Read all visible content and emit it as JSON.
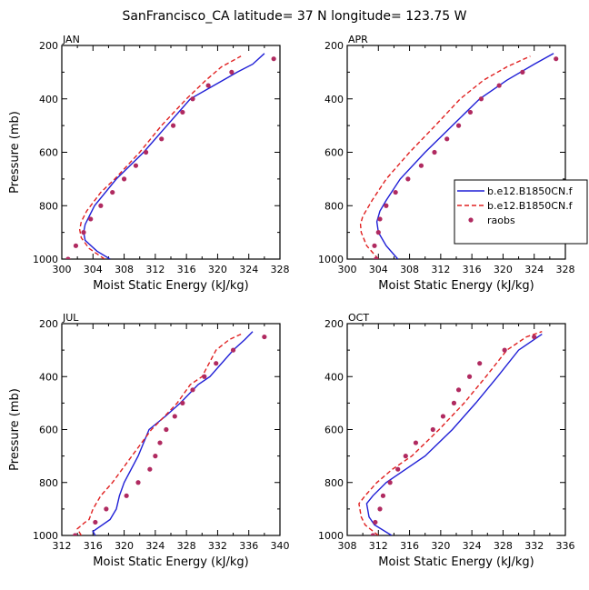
{
  "title": "SanFrancisco_CA  latitude= 37 N longitude= 123.75 W",
  "colors": {
    "model1": "#1f1fd6",
    "model2": "#e02020",
    "obs": "#b02a60",
    "axis": "#000000"
  },
  "legend": {
    "placement": "right edge of APR panel",
    "entries": [
      {
        "label": "b.e12.B1850CN.f",
        "style": "solid",
        "color": "#1f1fd6"
      },
      {
        "label": "b.e12.B1850CN.f",
        "style": "dashed",
        "color": "#e02020"
      },
      {
        "label": "raobs",
        "style": "dots",
        "color": "#b02a60"
      }
    ]
  },
  "chart_data": [
    {
      "type": "line",
      "panel": "JAN",
      "xlabel": "Moist Static Energy (kJ/kg)",
      "ylabel": "Pressure (mb)",
      "xlim": [
        300,
        328
      ],
      "xticks": [
        300,
        304,
        308,
        312,
        316,
        320,
        324,
        328
      ],
      "ylim": [
        1000,
        200
      ],
      "yticks": [
        200,
        400,
        600,
        800,
        1000
      ],
      "series": [
        {
          "style": "solid",
          "color": "#1f1fd6",
          "points": [
            [
              306.2,
              1000
            ],
            [
              304.5,
              970
            ],
            [
              303.0,
              930
            ],
            [
              302.8,
              900
            ],
            [
              303.0,
              870
            ],
            [
              304.2,
              800
            ],
            [
              307.0,
              700
            ],
            [
              310.5,
              600
            ],
            [
              313.5,
              500
            ],
            [
              316.5,
              400
            ],
            [
              319.5,
              350
            ],
            [
              322.5,
              300
            ],
            [
              324.5,
              270
            ],
            [
              326.0,
              230
            ]
          ]
        },
        {
          "style": "dashed",
          "color": "#e02020",
          "points": [
            [
              305.5,
              1000
            ],
            [
              303.5,
              960
            ],
            [
              302.5,
              920
            ],
            [
              302.3,
              890
            ],
            [
              302.5,
              860
            ],
            [
              303.2,
              820
            ],
            [
              305.0,
              750
            ],
            [
              306.8,
              700
            ],
            [
              310.0,
              600
            ],
            [
              312.8,
              500
            ],
            [
              316.0,
              400
            ],
            [
              318.5,
              330
            ],
            [
              320.5,
              280
            ],
            [
              323.0,
              240
            ]
          ]
        },
        {
          "style": "dots",
          "color": "#b02a60",
          "points": [
            [
              300.8,
              1000
            ],
            [
              301.8,
              950
            ],
            [
              302.8,
              900
            ],
            [
              303.7,
              850
            ],
            [
              305.0,
              800
            ],
            [
              306.5,
              750
            ],
            [
              308.0,
              700
            ],
            [
              309.5,
              650
            ],
            [
              310.8,
              600
            ],
            [
              312.8,
              550
            ],
            [
              314.3,
              500
            ],
            [
              315.5,
              450
            ],
            [
              316.8,
              400
            ],
            [
              318.8,
              350
            ],
            [
              321.8,
              300
            ],
            [
              327.2,
              250
            ]
          ]
        }
      ]
    },
    {
      "type": "line",
      "panel": "APR",
      "xlabel": "Moist Static Energy (kJ/kg)",
      "ylabel": "",
      "xlim": [
        300,
        328
      ],
      "xticks": [
        300,
        304,
        308,
        312,
        316,
        320,
        324,
        328
      ],
      "ylim": [
        1000,
        200
      ],
      "yticks": [
        200,
        400,
        600,
        800,
        1000
      ],
      "series": [
        {
          "style": "solid",
          "color": "#1f1fd6",
          "points": [
            [
              306.5,
              1000
            ],
            [
              305.0,
              950
            ],
            [
              304.0,
              900
            ],
            [
              303.8,
              860
            ],
            [
              304.2,
              820
            ],
            [
              305.0,
              780
            ],
            [
              306.8,
              700
            ],
            [
              310.0,
              600
            ],
            [
              313.5,
              500
            ],
            [
              317.0,
              400
            ],
            [
              320.5,
              330
            ],
            [
              324.0,
              270
            ],
            [
              326.5,
              230
            ]
          ]
        },
        {
          "style": "dashed",
          "color": "#e02020",
          "points": [
            [
              304.0,
              1000
            ],
            [
              302.5,
              950
            ],
            [
              301.8,
              900
            ],
            [
              301.7,
              870
            ],
            [
              302.0,
              840
            ],
            [
              303.2,
              780
            ],
            [
              305.0,
              700
            ],
            [
              308.0,
              600
            ],
            [
              311.3,
              500
            ],
            [
              314.5,
              400
            ],
            [
              317.5,
              330
            ],
            [
              320.5,
              280
            ],
            [
              323.5,
              240
            ]
          ]
        },
        {
          "style": "dots",
          "color": "#b02a60",
          "points": [
            [
              303.7,
              1000
            ],
            [
              303.5,
              950
            ],
            [
              304.0,
              900
            ],
            [
              304.2,
              850
            ],
            [
              305.0,
              800
            ],
            [
              306.2,
              750
            ],
            [
              307.8,
              700
            ],
            [
              309.5,
              650
            ],
            [
              311.2,
              600
            ],
            [
              312.8,
              550
            ],
            [
              314.3,
              500
            ],
            [
              315.8,
              450
            ],
            [
              317.2,
              400
            ],
            [
              319.5,
              350
            ],
            [
              322.5,
              300
            ],
            [
              326.8,
              250
            ]
          ]
        }
      ]
    },
    {
      "type": "line",
      "panel": "JUL",
      "xlabel": "Moist Static Energy (kJ/kg)",
      "ylabel": "Pressure (mb)",
      "xlim": [
        312,
        340
      ],
      "xticks": [
        312,
        316,
        320,
        324,
        328,
        332,
        336,
        340
      ],
      "ylim": [
        1000,
        200
      ],
      "yticks": [
        200,
        400,
        600,
        800,
        1000
      ],
      "series": [
        {
          "style": "solid",
          "color": "#1f1fd6",
          "points": [
            [
              316.3,
              1000
            ],
            [
              316.0,
              985
            ],
            [
              318.2,
              940
            ],
            [
              319.0,
              900
            ],
            [
              319.4,
              850
            ],
            [
              320.0,
              800
            ],
            [
              321.8,
              700
            ],
            [
              323.2,
              600
            ],
            [
              325.3,
              550
            ],
            [
              327.2,
              500
            ],
            [
              329.5,
              430
            ],
            [
              331.0,
              400
            ],
            [
              334.0,
              300
            ],
            [
              335.5,
              260
            ],
            [
              336.5,
              230
            ]
          ]
        },
        {
          "style": "dashed",
          "color": "#e02020",
          "points": [
            [
              314.5,
              1000
            ],
            [
              314.0,
              975
            ],
            [
              315.0,
              950
            ],
            [
              315.5,
              940
            ],
            [
              316.0,
              900
            ],
            [
              317.0,
              850
            ],
            [
              318.5,
              800
            ],
            [
              321.0,
              700
            ],
            [
              323.5,
              600
            ],
            [
              325.2,
              550
            ],
            [
              326.8,
              500
            ],
            [
              328.5,
              430
            ],
            [
              330.0,
              400
            ],
            [
              331.8,
              300
            ],
            [
              333.5,
              260
            ],
            [
              335.0,
              240
            ]
          ]
        },
        {
          "style": "dots",
          "color": "#b02a60",
          "points": [
            [
              313.7,
              1000
            ],
            [
              316.3,
              950
            ],
            [
              317.7,
              900
            ],
            [
              320.3,
              850
            ],
            [
              321.8,
              800
            ],
            [
              323.3,
              750
            ],
            [
              324.0,
              700
            ],
            [
              324.6,
              650
            ],
            [
              325.4,
              600
            ],
            [
              326.5,
              550
            ],
            [
              327.5,
              500
            ],
            [
              328.8,
              450
            ],
            [
              330.3,
              400
            ],
            [
              331.8,
              350
            ],
            [
              334.0,
              300
            ],
            [
              338.0,
              250
            ]
          ]
        }
      ]
    },
    {
      "type": "line",
      "panel": "OCT",
      "xlabel": "Moist Static Energy (kJ/kg)",
      "ylabel": "",
      "xlim": [
        308,
        336
      ],
      "xticks": [
        308,
        312,
        316,
        320,
        324,
        328,
        332,
        336
      ],
      "ylim": [
        1000,
        200
      ],
      "yticks": [
        200,
        400,
        600,
        800,
        1000
      ],
      "series": [
        {
          "style": "solid",
          "color": "#1f1fd6",
          "points": [
            [
              313.7,
              1000
            ],
            [
              311.5,
              960
            ],
            [
              310.8,
              930
            ],
            [
              310.5,
              880
            ],
            [
              311.3,
              850
            ],
            [
              313.0,
              800
            ],
            [
              315.5,
              750
            ],
            [
              318.0,
              700
            ],
            [
              321.5,
              600
            ],
            [
              324.5,
              500
            ],
            [
              327.3,
              400
            ],
            [
              330.0,
              300
            ],
            [
              333.0,
              240
            ]
          ]
        },
        {
          "style": "dashed",
          "color": "#e02020",
          "points": [
            [
              312.0,
              1000
            ],
            [
              310.3,
              960
            ],
            [
              309.8,
              930
            ],
            [
              309.5,
              880
            ],
            [
              310.3,
              850
            ],
            [
              311.8,
              800
            ],
            [
              313.8,
              750
            ],
            [
              316.3,
              700
            ],
            [
              319.8,
              600
            ],
            [
              323.0,
              500
            ],
            [
              325.8,
              400
            ],
            [
              328.5,
              300
            ],
            [
              331.0,
              250
            ],
            [
              333.0,
              230
            ]
          ]
        },
        {
          "style": "dots",
          "color": "#b02a60",
          "points": [
            [
              311.3,
              1000
            ],
            [
              311.6,
              950
            ],
            [
              312.2,
              900
            ],
            [
              312.6,
              850
            ],
            [
              313.5,
              800
            ],
            [
              314.5,
              750
            ],
            [
              315.5,
              700
            ],
            [
              316.8,
              650
            ],
            [
              319.0,
              600
            ],
            [
              320.3,
              550
            ],
            [
              321.7,
              500
            ],
            [
              322.3,
              450
            ],
            [
              323.7,
              400
            ],
            [
              325.0,
              350
            ],
            [
              328.2,
              300
            ],
            [
              332.0,
              250
            ]
          ]
        }
      ]
    }
  ]
}
